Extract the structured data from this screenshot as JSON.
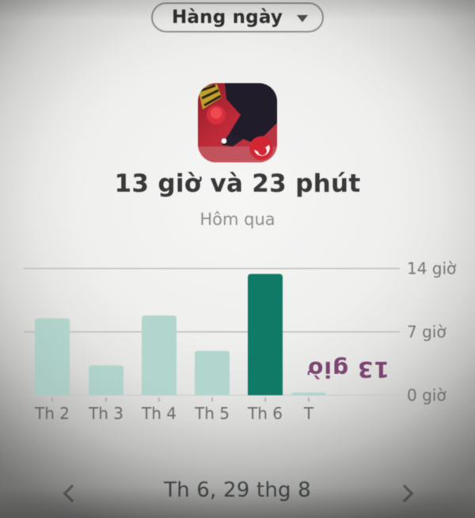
{
  "period_selector": {
    "label": "Hàng ngày"
  },
  "usage": {
    "title": "13 giờ và 23 phút",
    "subtitle": "Hôm qua"
  },
  "chart_data": {
    "type": "bar",
    "categories": [
      "Th 2",
      "Th 3",
      "Th 4",
      "Th 5",
      "Th 6",
      "T"
    ],
    "values": [
      8.5,
      3.3,
      8.8,
      4.9,
      13.4,
      0.3
    ],
    "highlight_index": 4,
    "title": "",
    "xlabel": "",
    "ylabel": "",
    "ylim": [
      0,
      14
    ],
    "yticks": [
      0,
      7,
      14
    ],
    "ytick_labels": [
      "0 giờ",
      "7 giờ",
      "14 giờ"
    ],
    "grid": "horizontal",
    "legend": "none",
    "bar_color": "#b2d6ce",
    "bar_color_highlight": "#117a67",
    "gridline_color": "#bcbcbb",
    "baseline_color": "#cfcfce",
    "axis_label_color": "#767676",
    "category_label_color": "#6d6d6d",
    "annotation": {
      "text": "13 giờ",
      "color": "#7c4470",
      "rotation_deg": 180,
      "note": "tooltip rendered upside-down next to highlighted bar"
    }
  },
  "date_nav": {
    "label": "Th 6, 29 thg 8"
  },
  "icons": {
    "app_icon": "free-fire-app-icon",
    "dropdown_caret": "caret-down-icon",
    "prev": "chevron-left-icon",
    "next": "chevron-right-icon"
  },
  "colors": {
    "accent_teal": "#117a67",
    "light_teal": "#b2d6ce",
    "tooltip_purple": "#7c4470",
    "title_text": "#383838",
    "muted_text": "#8d8d8d"
  }
}
